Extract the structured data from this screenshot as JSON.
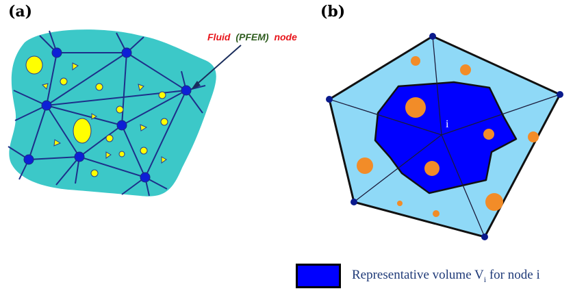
{
  "panels": {
    "a_label": "(a)",
    "b_label": "(b)"
  },
  "annotation": {
    "word_fluid": "Fluid",
    "word_pfem": "(PFEM)",
    "word_node": "node",
    "color_fluid": "#e8141a",
    "color_pfem": "#2e5c1e",
    "color_node": "#e8141a"
  },
  "center_label": "i",
  "legend": {
    "text_before": "Representative volume V",
    "subscript": "i",
    "text_after": " for node i",
    "swatch_color": "#0000ff"
  },
  "colors": {
    "fluid_domain": "#3cc8c8",
    "mesh_node": "#0d1fd6",
    "particle": "#ffff00",
    "polygon_fill": "#8fd9f7",
    "rep_volume": "#0000ff",
    "orange_particle": "#f28c28",
    "outer_node": "#0a1a8c"
  }
}
